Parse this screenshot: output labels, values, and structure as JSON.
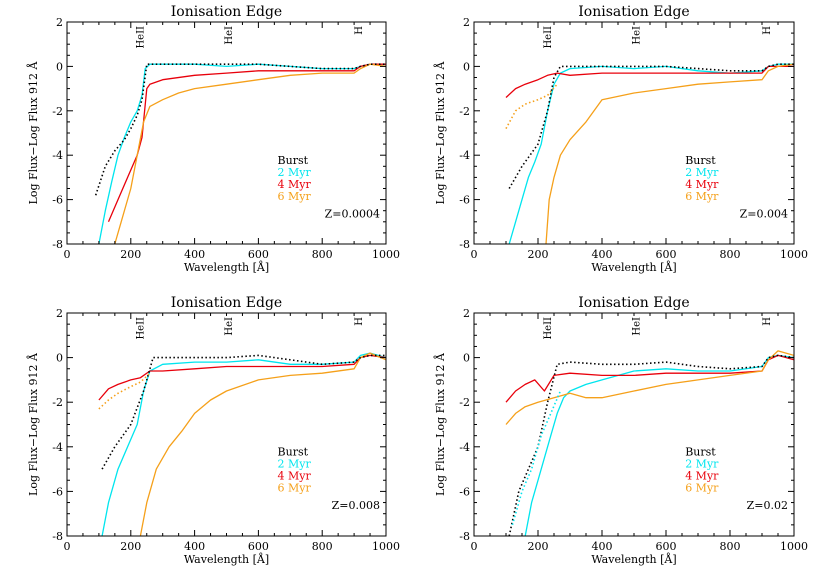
{
  "figure": {
    "background": "#ffffff"
  },
  "chart_data": [
    {
      "type": "line",
      "title": "Ionisation Edge",
      "xlabel": "Wavelength [Å]",
      "ylabel": "Log Flux−Log Flux 912 Å",
      "xlim": [
        0,
        1000
      ],
      "ylim": [
        -8,
        2
      ],
      "xticks": [
        "0",
        "200",
        "400",
        "600",
        "800",
        "1000"
      ],
      "yticks": [
        "-8",
        "-6",
        "-4",
        "-2",
        "0",
        "2"
      ],
      "edges": [
        {
          "label": "HeII",
          "x": 228
        },
        {
          "label": "HeI",
          "x": 504
        },
        {
          "label": "H",
          "x": 912
        }
      ],
      "legend_title": "Burst",
      "metallicity": "Z=0.0004",
      "series": [
        {
          "name": "2 Myr",
          "color": "#00e5ee",
          "style": "solid",
          "x": [
            100,
            120,
            140,
            160,
            180,
            200,
            220,
            235,
            245,
            260,
            300,
            400,
            500,
            600,
            700,
            800,
            900,
            920,
            950,
            1000
          ],
          "y": [
            -8,
            -6.5,
            -5.2,
            -4,
            -3.2,
            -2.5,
            -2,
            -1.3,
            -0.1,
            0.1,
            0.1,
            0.1,
            0,
            0.1,
            0,
            -0.1,
            -0.1,
            0,
            0.1,
            0.1
          ]
        },
        {
          "name": "4 Myr",
          "color": "#e8000b",
          "style": "solid",
          "x": [
            130,
            160,
            190,
            220,
            235,
            250,
            260,
            300,
            400,
            500,
            600,
            700,
            800,
            900,
            920,
            950,
            1000
          ],
          "y": [
            -7,
            -6,
            -5,
            -4,
            -3.2,
            -1,
            -0.8,
            -0.6,
            -0.4,
            -0.3,
            -0.2,
            -0.2,
            -0.2,
            -0.2,
            0,
            0.1,
            0.1
          ]
        },
        {
          "name": "6 Myr",
          "color": "#f5a01a",
          "style": "solid",
          "x": [
            150,
            170,
            200,
            220,
            240,
            260,
            300,
            350,
            400,
            500,
            600,
            700,
            800,
            900,
            920,
            950,
            1000
          ],
          "y": [
            -8,
            -7,
            -5.5,
            -4,
            -2.5,
            -1.8,
            -1.5,
            -1.2,
            -1,
            -0.8,
            -0.6,
            -0.4,
            -0.3,
            -0.3,
            -0.1,
            0.1,
            0
          ]
        },
        {
          "name": "",
          "color": "#000000",
          "style": "dotted",
          "x": [
            90,
            120,
            150,
            180,
            200,
            220,
            235,
            250,
            300,
            400,
            500,
            600,
            700,
            800,
            900,
            920,
            950,
            1000
          ],
          "y": [
            -5.8,
            -4.5,
            -3.8,
            -3.3,
            -2.8,
            -2.2,
            -1.5,
            0.1,
            0.1,
            0.1,
            0.1,
            0.1,
            0,
            -0.1,
            -0.1,
            0,
            0.1,
            0.1
          ]
        }
      ]
    },
    {
      "type": "line",
      "title": "Ionisation Edge",
      "xlabel": "Wavelength [Å]",
      "ylabel": "Log Flux−Log Flux 912 Å",
      "xlim": [
        0,
        1000
      ],
      "ylim": [
        -8,
        2
      ],
      "xticks": [
        "0",
        "200",
        "400",
        "600",
        "800",
        "1000"
      ],
      "yticks": [
        "-8",
        "-6",
        "-4",
        "-2",
        "0",
        "2"
      ],
      "edges": [
        {
          "label": "HeII",
          "x": 228
        },
        {
          "label": "HeI",
          "x": 504
        },
        {
          "label": "H",
          "x": 912
        }
      ],
      "legend_title": "Burst",
      "metallicity": "Z=0.004",
      "series": [
        {
          "name": "2 Myr",
          "color": "#00e5ee",
          "style": "solid",
          "x": [
            110,
            130,
            150,
            170,
            190,
            210,
            230,
            250,
            270,
            300,
            400,
            500,
            600,
            700,
            800,
            900,
            920,
            950,
            1000
          ],
          "y": [
            -8,
            -7,
            -6,
            -5,
            -4.3,
            -3.5,
            -2,
            -0.8,
            -0.3,
            -0.1,
            0,
            -0.1,
            0,
            -0.2,
            -0.3,
            -0.2,
            0,
            0.1,
            0.1
          ]
        },
        {
          "name": "4 Myr",
          "color": "#e8000b",
          "style": "solid",
          "x": [
            100,
            130,
            160,
            200,
            230,
            260,
            300,
            400,
            500,
            600,
            700,
            800,
            900,
            920,
            950,
            1000
          ],
          "y": [
            -1.4,
            -1,
            -0.8,
            -0.6,
            -0.4,
            -0.3,
            -0.4,
            -0.3,
            -0.3,
            -0.3,
            -0.3,
            -0.3,
            -0.3,
            0,
            0,
            0
          ]
        },
        {
          "name": "6 Myr",
          "color": "#f5a01a",
          "style": "solid",
          "x": [
            225,
            235,
            250,
            270,
            300,
            350,
            400,
            500,
            600,
            700,
            800,
            900,
            920,
            950,
            1000
          ],
          "y": [
            -8,
            -6,
            -5,
            -4,
            -3.3,
            -2.5,
            -1.5,
            -1.2,
            -1,
            -0.8,
            -0.7,
            -0.6,
            -0.2,
            0,
            0.1
          ]
        },
        {
          "name": "",
          "color": "#000000",
          "style": "dotted",
          "x": [
            110,
            150,
            200,
            230,
            250,
            270,
            300,
            400,
            500,
            600,
            700,
            800,
            900,
            920,
            950,
            1000
          ],
          "y": [
            -5.5,
            -4.5,
            -3.5,
            -2,
            -0.5,
            0,
            0,
            0,
            0,
            0,
            -0.1,
            -0.2,
            -0.2,
            0,
            0.1,
            0.1
          ]
        },
        {
          "name": "",
          "color": "#f5a01a",
          "style": "dotted",
          "x": [
            100,
            130,
            160,
            200,
            230,
            260
          ],
          "y": [
            -2.8,
            -2,
            -1.7,
            -1.5,
            -1.3,
            -0.8
          ]
        }
      ]
    },
    {
      "type": "line",
      "title": "Ionisation Edge",
      "xlabel": "Wavelength [Å]",
      "ylabel": "Log Flux−Log Flux 912 Å",
      "xlim": [
        0,
        1000
      ],
      "ylim": [
        -8,
        2
      ],
      "xticks": [
        "0",
        "200",
        "400",
        "600",
        "800",
        "1000"
      ],
      "yticks": [
        "-8",
        "-6",
        "-4",
        "-2",
        "0",
        "2"
      ],
      "edges": [
        {
          "label": "HeII",
          "x": 228
        },
        {
          "label": "HeI",
          "x": 504
        },
        {
          "label": "H",
          "x": 912
        }
      ],
      "legend_title": "Burst",
      "metallicity": "Z=0.008",
      "series": [
        {
          "name": "2 Myr",
          "color": "#00e5ee",
          "style": "solid",
          "x": [
            110,
            130,
            160,
            190,
            220,
            240,
            260,
            300,
            400,
            500,
            600,
            700,
            800,
            900,
            920,
            950,
            1000
          ],
          "y": [
            -8,
            -6.5,
            -5,
            -4,
            -3,
            -1.5,
            -0.6,
            -0.3,
            -0.2,
            -0.2,
            -0.1,
            -0.3,
            -0.3,
            -0.2,
            0.1,
            0.2,
            0
          ]
        },
        {
          "name": "4 Myr",
          "color": "#e8000b",
          "style": "solid",
          "x": [
            100,
            130,
            160,
            200,
            230,
            260,
            300,
            400,
            500,
            600,
            700,
            800,
            900,
            920,
            950,
            1000
          ],
          "y": [
            -1.9,
            -1.4,
            -1.2,
            -1,
            -0.9,
            -0.6,
            -0.6,
            -0.5,
            -0.4,
            -0.4,
            -0.4,
            -0.4,
            -0.3,
            0,
            0.1,
            0
          ]
        },
        {
          "name": "6 Myr",
          "color": "#f5a01a",
          "style": "solid",
          "x": [
            230,
            250,
            280,
            320,
            360,
            400,
            450,
            500,
            600,
            700,
            800,
            900,
            920,
            950,
            1000
          ],
          "y": [
            -8,
            -6.5,
            -5,
            -4,
            -3.3,
            -2.5,
            -1.9,
            -1.5,
            -1,
            -0.8,
            -0.7,
            -0.5,
            0,
            0.2,
            -0.1
          ]
        },
        {
          "name": "",
          "color": "#000000",
          "style": "dotted",
          "x": [
            110,
            150,
            200,
            240,
            270,
            300,
            400,
            500,
            600,
            700,
            800,
            900,
            920,
            950,
            1000
          ],
          "y": [
            -5,
            -4,
            -3,
            -1.5,
            0,
            0,
            0,
            0,
            0.1,
            -0.1,
            -0.3,
            -0.2,
            0,
            0.1,
            0.1
          ]
        },
        {
          "name": "",
          "color": "#f5a01a",
          "style": "dotted",
          "x": [
            100,
            130,
            160,
            200,
            230,
            260
          ],
          "y": [
            -2.3,
            -1.9,
            -1.6,
            -1.3,
            -1.1,
            -0.7
          ]
        }
      ]
    },
    {
      "type": "line",
      "title": "Ionisation Edge",
      "xlabel": "Wavelength [Å]",
      "ylabel": "Log Flux−Log Flux 912 Å",
      "xlim": [
        0,
        1000
      ],
      "ylim": [
        -8,
        2
      ],
      "xticks": [
        "0",
        "200",
        "400",
        "600",
        "800",
        "1000"
      ],
      "yticks": [
        "-8",
        "-6",
        "-4",
        "-2",
        "0",
        "2"
      ],
      "edges": [
        {
          "label": "HeII",
          "x": 228
        },
        {
          "label": "HeI",
          "x": 504
        },
        {
          "label": "H",
          "x": 912
        }
      ],
      "legend_title": "Burst",
      "metallicity": "Z=0.02",
      "series": [
        {
          "name": "2 Myr",
          "color": "#00e5ee",
          "style": "solid",
          "x": [
            160,
            180,
            200,
            220,
            240,
            260,
            280,
            300,
            350,
            400,
            500,
            600,
            700,
            800,
            900,
            920,
            950,
            1000
          ],
          "y": [
            -8,
            -6.5,
            -5.5,
            -4.5,
            -3.5,
            -2.5,
            -1.8,
            -1.5,
            -1.2,
            -1,
            -0.6,
            -0.5,
            -0.6,
            -0.6,
            -0.4,
            0,
            0.1,
            0
          ]
        },
        {
          "name": "4 Myr",
          "color": "#e8000b",
          "style": "solid",
          "x": [
            100,
            130,
            160,
            190,
            220,
            250,
            300,
            400,
            500,
            600,
            700,
            800,
            900,
            920,
            950,
            1000
          ],
          "y": [
            -2,
            -1.5,
            -1.2,
            -1,
            -1.5,
            -0.8,
            -0.7,
            -0.8,
            -0.8,
            -0.7,
            -0.7,
            -0.7,
            -0.6,
            -0.1,
            0.1,
            -0.1
          ]
        },
        {
          "name": "6 Myr",
          "color": "#f5a01a",
          "style": "solid",
          "x": [
            100,
            130,
            160,
            200,
            250,
            300,
            350,
            400,
            500,
            600,
            700,
            800,
            900,
            920,
            950,
            1000
          ],
          "y": [
            -3,
            -2.5,
            -2.2,
            -2,
            -1.8,
            -1.6,
            -1.8,
            -1.8,
            -1.5,
            -1.2,
            -1,
            -0.8,
            -0.6,
            -0.1,
            0.3,
            0.1
          ]
        },
        {
          "name": "",
          "color": "#000000",
          "style": "dotted",
          "x": [
            110,
            140,
            170,
            200,
            230,
            260,
            300,
            400,
            500,
            600,
            700,
            800,
            900,
            920,
            950,
            1000
          ],
          "y": [
            -8,
            -6,
            -5,
            -4,
            -2,
            -0.3,
            -0.2,
            -0.3,
            -0.3,
            -0.2,
            -0.4,
            -0.5,
            -0.4,
            0,
            0.1,
            0
          ]
        },
        {
          "name": "",
          "color": "#00e5ee",
          "style": "dotted",
          "x": [
            120,
            150,
            180,
            210,
            240,
            270
          ],
          "y": [
            -7.5,
            -6,
            -5,
            -3.5,
            -2.5,
            -1.5
          ]
        }
      ]
    }
  ]
}
